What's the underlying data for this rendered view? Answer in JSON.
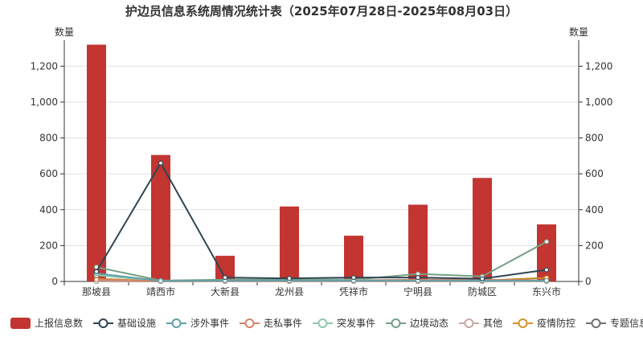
{
  "chart_data": {
    "type": "bar",
    "title": "护边员信息系统周情况统计表（2025年07月28日-2025年08月03日）",
    "ylabel_left": "数量",
    "ylabel_right": "数量",
    "ylim": [
      0,
      1300
    ],
    "yticks": [
      0,
      200,
      400,
      600,
      800,
      1000,
      1200
    ],
    "ytick_labels": [
      "0",
      "200",
      "400",
      "600",
      "800",
      "1,000",
      "1,200"
    ],
    "grid": true,
    "legend_position": "bottom",
    "categories": [
      "那坡县",
      "靖西市",
      "大新县",
      "龙州县",
      "凭祥市",
      "宁明县",
      "防城区",
      "东兴市"
    ],
    "bar_series": {
      "name": "上报信息数",
      "color": "#c23531",
      "values": [
        1320,
        705,
        143,
        418,
        255,
        428,
        577,
        318
      ]
    },
    "line_series": [
      {
        "name": "基础设施",
        "color": "#2f4554",
        "values": [
          55,
          660,
          22,
          17,
          22,
          22,
          15,
          65
        ]
      },
      {
        "name": "涉外事件",
        "color": "#61a0a8",
        "values": [
          45,
          3,
          5,
          5,
          5,
          5,
          5,
          5
        ]
      },
      {
        "name": "走私事件",
        "color": "#d48265",
        "values": [
          10,
          2,
          5,
          3,
          5,
          10,
          10,
          5
        ]
      },
      {
        "name": "突发事件",
        "color": "#91c7ae",
        "values": [
          35,
          3,
          5,
          5,
          8,
          8,
          5,
          5
        ]
      },
      {
        "name": "边境动态",
        "color": "#749f83",
        "values": [
          80,
          5,
          10,
          10,
          10,
          42,
          28,
          222
        ]
      },
      {
        "name": "其他",
        "color": "#ca8622",
        "values": [
          15,
          2,
          5,
          5,
          5,
          5,
          5,
          20
        ],
        "legend_color": "#c8a8a0"
      },
      {
        "name": "疫情防控",
        "color": "#bda29a",
        "values": [
          0,
          0,
          0,
          0,
          0,
          0,
          0,
          0
        ],
        "legend_color": "#d4942a"
      },
      {
        "name": "专题信息",
        "color": "#6e7074",
        "values": [
          0,
          0,
          0,
          0,
          0,
          0,
          0,
          0
        ]
      }
    ]
  }
}
